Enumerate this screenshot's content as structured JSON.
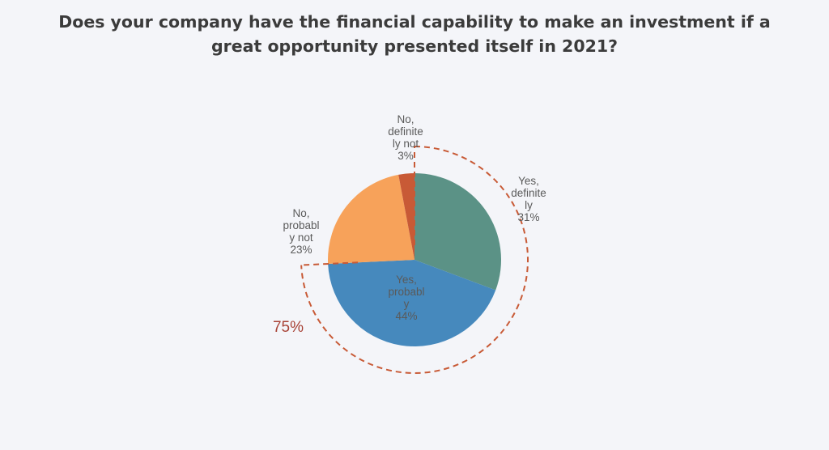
{
  "chart_data": {
    "type": "pie",
    "title_lines": [
      "Does your company have the financial capability to make an investment if a",
      "great opportunity presented itself in 2021?"
    ],
    "slices": [
      {
        "id": "yes-definitely",
        "label_lines": [
          "Yes,",
          "definite",
          "ly",
          "31%"
        ],
        "value": 31,
        "color": "#5b9286"
      },
      {
        "id": "yes-probably",
        "label_lines": [
          "Yes,",
          "probabl",
          "y",
          "44%"
        ],
        "value": 44,
        "color": "#4689bd"
      },
      {
        "id": "no-probably-not",
        "label_lines": [
          "No,",
          "probabl",
          "y not",
          "23%"
        ],
        "value": 23,
        "color": "#f7a25a"
      },
      {
        "id": "no-definitely-not",
        "label_lines": [
          "No,",
          "definite",
          "ly not",
          "3%"
        ],
        "value": 3,
        "color": "#c85a36"
      }
    ],
    "callout": {
      "text": "75%",
      "color": "#a84236"
    }
  }
}
